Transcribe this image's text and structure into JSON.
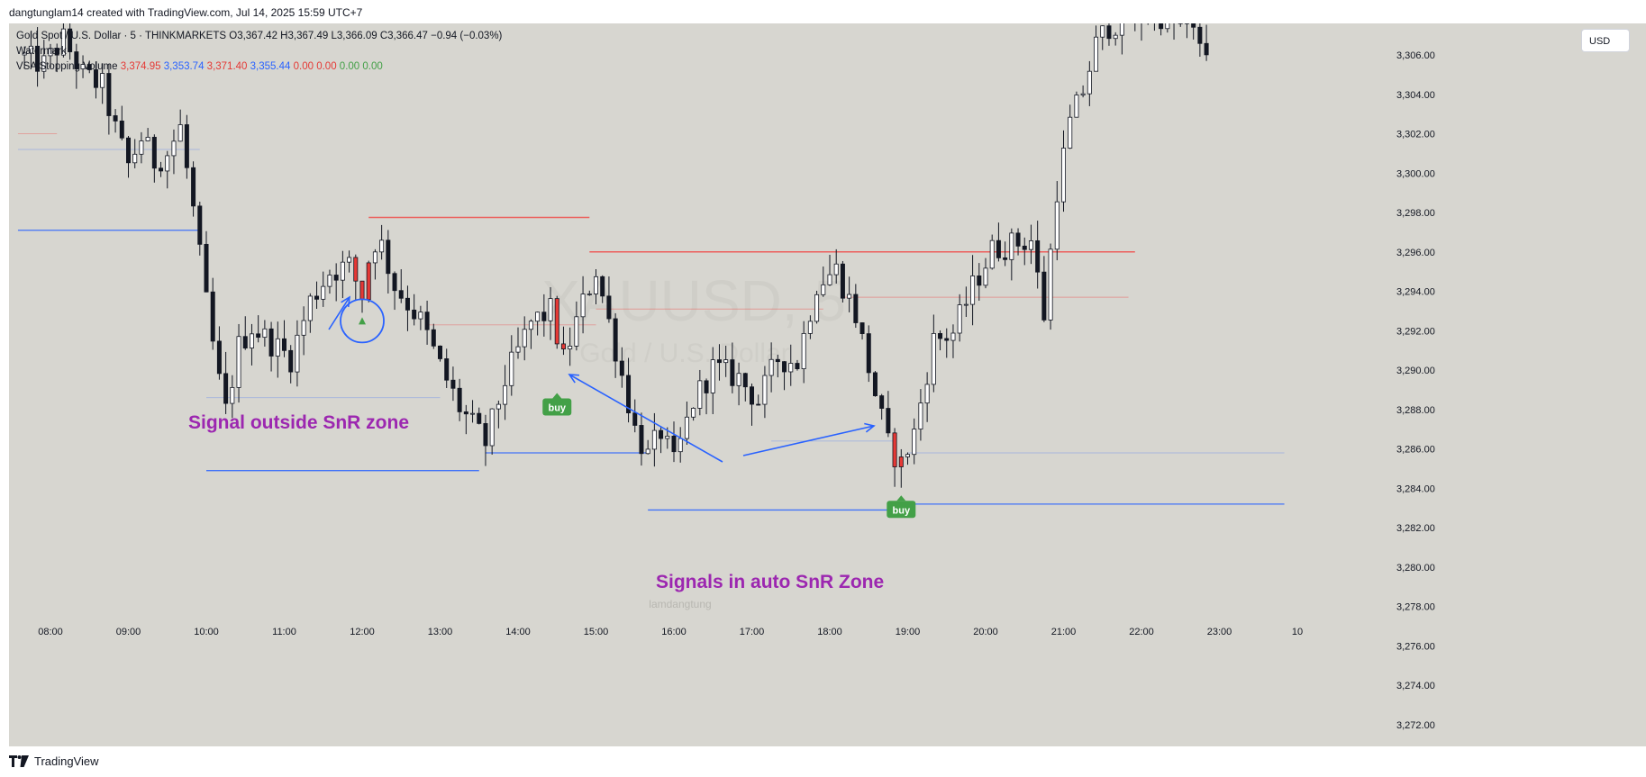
{
  "header": {
    "credit": "dangtunglam14 created with TradingView.com, Jul 14, 2025 15:59 UTC+7"
  },
  "legend": {
    "symbol_line": "Gold Spot / U.S. Dollar · 5 · THINKMARKETS",
    "ohlc": {
      "o": "O3,367.42",
      "h": "H3,367.49",
      "l": "L3,366.09",
      "c": "C3,366.47",
      "chg": "−0.94 (−0.03%)"
    },
    "watermark_label": "Watermark",
    "indicator_name": "VSA Stopping Volume",
    "indicator_values": [
      "3,374.95",
      "3,353.74",
      "3,371.40",
      "3,355.44",
      "0.00",
      "0.00",
      "0.00",
      "0.00"
    ]
  },
  "currency_button": "USD",
  "watermark": {
    "symbol": "XAUUSD, 5",
    "name": "Gold / U.S. Dollar"
  },
  "author_mark": "lamdangtung",
  "footer": {
    "brand": "TradingView"
  },
  "colors": {
    "background": "#d7d6d0",
    "up": "#ffffff",
    "down": "#131722",
    "signal_bar": "#e53935",
    "resistance": "#ef5350",
    "support": "#2962ff",
    "buy_badge": "#43a047",
    "annotation_text": "#9c27b0",
    "arrow": "#2962ff"
  },
  "chart_data": {
    "type": "candlestick",
    "symbol": "XAUUSD",
    "timeframe_minutes": 5,
    "x_ticks": [
      "08:00",
      "09:00",
      "10:00",
      "11:00",
      "12:00",
      "13:00",
      "14:00",
      "15:00",
      "16:00",
      "17:00",
      "18:00",
      "19:00",
      "20:00",
      "21:00",
      "22:00",
      "23:00",
      "10"
    ],
    "y_ticks": [
      "3,272.00",
      "3,274.00",
      "3,276.00",
      "3,278.00",
      "3,280.00",
      "3,282.00",
      "3,284.00",
      "3,286.00",
      "3,288.00",
      "3,290.00",
      "3,292.00",
      "3,294.00",
      "3,296.00",
      "3,298.00",
      "3,300.00",
      "3,302.00",
      "3,304.00",
      "3,306.00"
    ],
    "ylim": [
      3270.9,
      3307.6
    ],
    "series_path_close": [
      [
        "07:35",
        3306.0
      ],
      [
        "07:55",
        3305.5
      ],
      [
        "08:10",
        3306.8
      ],
      [
        "08:25",
        3305.0
      ],
      [
        "08:40",
        3304.4
      ],
      [
        "08:50",
        3302.2
      ],
      [
        "09:00",
        3300.4
      ],
      [
        "09:10",
        3301.8
      ],
      [
        "09:20",
        3300.6
      ],
      [
        "09:30",
        3301.0
      ],
      [
        "09:40",
        3302.3
      ],
      [
        "09:50",
        3298.1
      ],
      [
        "10:00",
        3293.4
      ],
      [
        "10:08",
        3290.0
      ],
      [
        "10:15",
        3287.9
      ],
      [
        "10:25",
        3291.2
      ],
      [
        "10:35",
        3292.2
      ],
      [
        "10:50",
        3291.4
      ],
      [
        "11:05",
        3290.6
      ],
      [
        "11:20",
        3293.5
      ],
      [
        "11:35",
        3295.0
      ],
      [
        "11:50",
        3295.3
      ],
      [
        "12:00",
        3293.8
      ],
      [
        "12:05",
        3295.6
      ],
      [
        "12:12",
        3296.9
      ],
      [
        "12:25",
        3294.3
      ],
      [
        "12:45",
        3292.5
      ],
      [
        "13:00",
        3290.2
      ],
      [
        "13:15",
        3288.1
      ],
      [
        "13:35",
        3286.3
      ],
      [
        "13:50",
        3289.5
      ],
      [
        "14:10",
        3292.4
      ],
      [
        "14:25",
        3293.0
      ],
      [
        "14:35",
        3290.5
      ],
      [
        "14:50",
        3293.4
      ],
      [
        "15:00",
        3295.1
      ],
      [
        "15:15",
        3291.1
      ],
      [
        "15:30",
        3287.0
      ],
      [
        "15:40",
        3285.6
      ],
      [
        "15:50",
        3286.9
      ],
      [
        "16:00",
        3285.2
      ],
      [
        "16:15",
        3288.4
      ],
      [
        "16:30",
        3290.1
      ],
      [
        "16:50",
        3289.6
      ],
      [
        "17:05",
        3288.4
      ],
      [
        "17:20",
        3290.6
      ],
      [
        "17:35",
        3290.4
      ],
      [
        "17:50",
        3294.4
      ],
      [
        "18:05",
        3295.1
      ],
      [
        "18:20",
        3292.8
      ],
      [
        "18:35",
        3288.8
      ],
      [
        "18:45",
        3286.2
      ],
      [
        "18:55",
        3285.2
      ],
      [
        "19:05",
        3286.8
      ],
      [
        "19:20",
        3291.5
      ],
      [
        "19:35",
        3291.9
      ],
      [
        "19:50",
        3294.2
      ],
      [
        "20:05",
        3296.1
      ],
      [
        "20:20",
        3296.4
      ],
      [
        "20:35",
        3296.6
      ],
      [
        "20:45",
        3292.8
      ],
      [
        "20:55",
        3299.2
      ],
      [
        "21:05",
        3302.5
      ],
      [
        "21:15",
        3304.2
      ],
      [
        "21:25",
        3306.5
      ],
      [
        "21:35",
        3307.5
      ],
      [
        "22:10",
        3308.2
      ],
      [
        "22:40",
        3307.0
      ],
      [
        "22:50",
        3306.4
      ]
    ],
    "resistance_levels": [
      {
        "price": 3297.75,
        "from": "12:05",
        "to": "14:55"
      },
      {
        "price": 3296.0,
        "from": "14:55",
        "to": "21:55"
      },
      {
        "price": 3293.7,
        "from": "18:10",
        "to": "21:50"
      },
      {
        "price": 3293.1,
        "from": "15:00",
        "to": "17:55"
      },
      {
        "price": 3292.3,
        "from": "12:50",
        "to": "15:00"
      },
      {
        "price": 3302.0,
        "from": "07:35",
        "to": "08:05"
      }
    ],
    "support_levels": [
      {
        "price": 3297.1,
        "from": "07:35",
        "to": "09:55"
      },
      {
        "price": 3284.9,
        "from": "10:00",
        "to": "13:30"
      },
      {
        "price": 3285.8,
        "from": "13:35",
        "to": "15:40"
      },
      {
        "price": 3282.9,
        "from": "15:40",
        "to": "19:00"
      },
      {
        "price": 3283.2,
        "from": "19:00",
        "to": "23:50"
      },
      {
        "price": 3301.2,
        "from": "07:35",
        "to": "09:55"
      },
      {
        "price": 3288.6,
        "from": "10:00",
        "to": "13:00"
      },
      {
        "price": 3286.4,
        "from": "17:15",
        "to": "18:50"
      },
      {
        "price": 3285.8,
        "from": "19:00",
        "to": "23:50"
      }
    ],
    "signals": [
      {
        "label": "buy",
        "time": "14:30",
        "price": 3288.2
      },
      {
        "label": "buy",
        "time": "18:55",
        "price": 3283.0
      },
      {
        "label": "",
        "time": "12:00",
        "price": 3292.5
      }
    ],
    "annotations": [
      {
        "text": "Signal outside SnR zone",
        "time": "10:00",
        "price": 3287.4
      },
      {
        "text": "Signals in auto SnR Zone",
        "time": "16:00",
        "price": 3279.3
      }
    ]
  }
}
